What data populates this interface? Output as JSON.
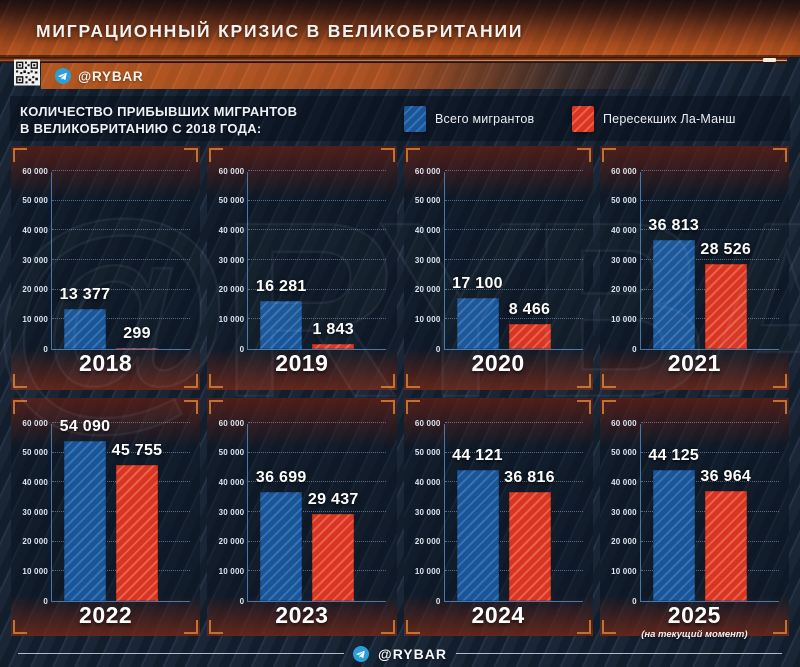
{
  "header": {
    "title": "МИГРАЦИОННЫЙ КРИЗИС В ВЕЛИКОБРИТАНИИ",
    "channel_badge": "@RYBAR"
  },
  "intro": {
    "heading_line1": "КОЛИЧЕСТВО ПРИБЫВШИХ МИГРАНТОВ",
    "heading_line2": "В ВЕЛИКОБРИТАНИЮ С 2018 ГОДА:"
  },
  "watermark": "@RYBAR",
  "footer": {
    "channel": "@RYBAR"
  },
  "colors": {
    "accent_orange": "#b85a22",
    "bracket_orange": "#cb7c34",
    "axis_blue": "#4878ab",
    "total_bar": "#1c5596",
    "total_bar_stripe": "#3273b8",
    "channel_bar": "#d93524",
    "channel_bar_stripe": "#ea6147",
    "telegram_blue": "#2b9fd8"
  },
  "chart_data": {
    "type": "bar",
    "categories": [
      "2018",
      "2019",
      "2020",
      "2021",
      "2022",
      "2023",
      "2024",
      "2025"
    ],
    "category_notes": {
      "2025": "(на текущий момент)"
    },
    "series": [
      {
        "name": "Всего мигрантов",
        "color": "#1c5596",
        "stripe": "#3273b8",
        "values": [
          13377,
          16281,
          17100,
          36813,
          54090,
          36699,
          44121,
          44125
        ]
      },
      {
        "name": "Пересекших Ла-Манш",
        "color": "#d93524",
        "stripe": "#ea6147",
        "values": [
          299,
          1843,
          8466,
          28526,
          45755,
          29437,
          36816,
          36964
        ]
      }
    ],
    "title": "КОЛИЧЕСТВО ПРИБЫВШИХ МИГРАНТОВ В ВЕЛИКОБРИТАНИЮ С 2018 ГОДА:",
    "xlabel": "",
    "ylabel": "",
    "ylim": [
      0,
      60000
    ],
    "yticks": [
      0,
      10000,
      20000,
      30000,
      40000,
      50000,
      60000
    ],
    "grid": true,
    "legend_position": "top",
    "value_labels": true,
    "number_format": "space-thousands",
    "layout": "8 small multiples, one per year, 4 columns x 2 rows"
  }
}
